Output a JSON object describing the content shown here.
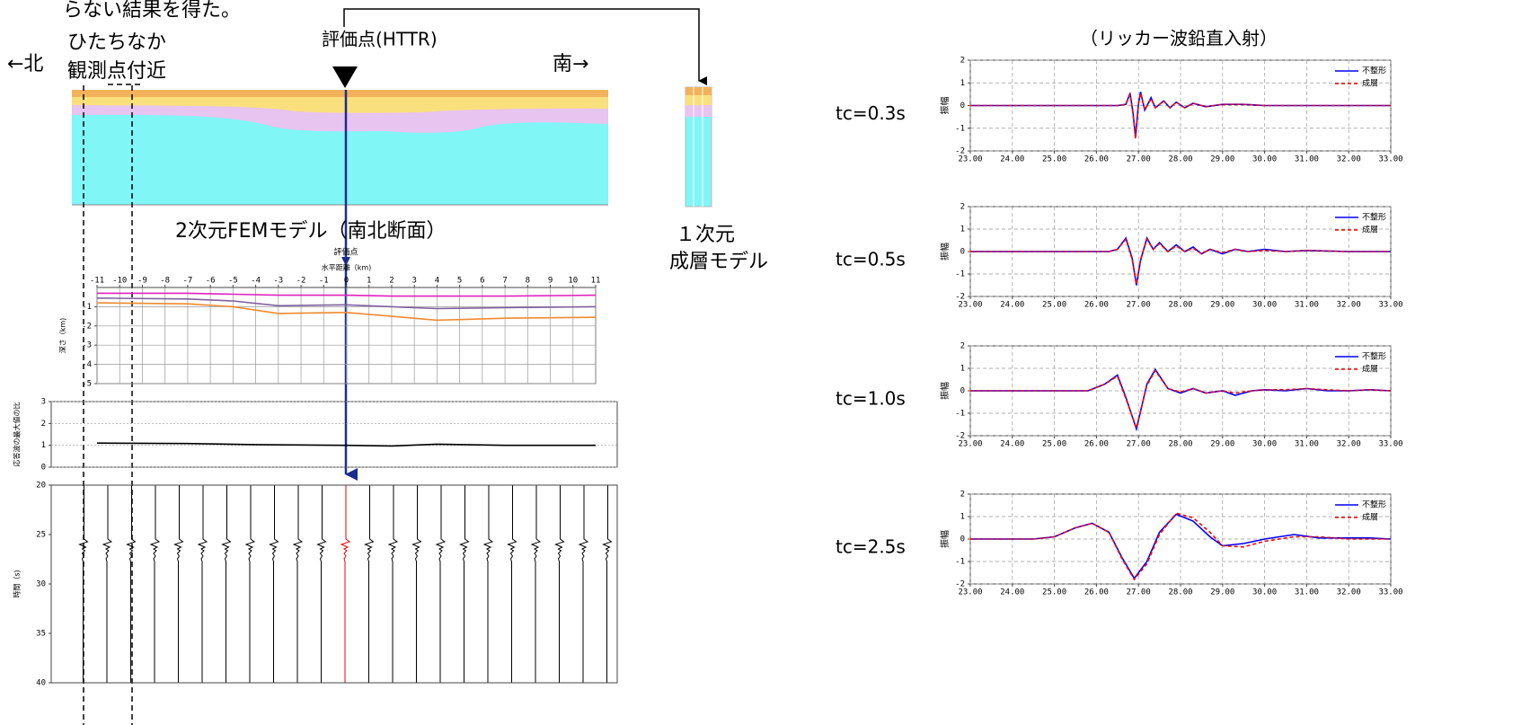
{
  "texts": {
    "note": "らない結果を得た。",
    "north": "←北",
    "site_1": "ひたちなか",
    "site_2": "観測点付近",
    "eval_point": "評価点(HTTR)",
    "south": "南→",
    "fem_caption": "2次元FEMモデル（南北断面）",
    "eval_small": "評価点",
    "one_d_1": "１次元",
    "one_d_2": "成層モデル",
    "ricker_title": "（リッカー波鉛直入射）"
  },
  "chart_data": [
    {
      "type": "line",
      "xlabel": "水平距離（km)",
      "ylabel": "深さ（km)",
      "xlim": [
        -11,
        11
      ],
      "ylim": [
        -5,
        0
      ],
      "grid": true,
      "grid_style": "solid",
      "xticks": [
        -11,
        -10,
        -9,
        -8,
        -7,
        -6,
        -5,
        -4,
        -3,
        -2,
        -1,
        0,
        1,
        2,
        3,
        4,
        5,
        6,
        7,
        8,
        9,
        10,
        11
      ],
      "yticks": [
        -1,
        -2,
        -3,
        -4,
        -5
      ],
      "x": [
        -11,
        -7,
        -5,
        -3,
        0,
        2,
        4,
        7,
        11
      ],
      "series": [
        {
          "color": "#e020c0",
          "values": [
            -0.3,
            -0.3,
            -0.35,
            -0.4,
            -0.4,
            -0.45,
            -0.45,
            -0.45,
            -0.4
          ]
        },
        {
          "color": "#8060a0",
          "values": [
            -0.55,
            -0.6,
            -0.7,
            -0.95,
            -0.9,
            -1.0,
            -1.1,
            -1.05,
            -1.0
          ]
        },
        {
          "color": "#f08a30",
          "values": [
            -0.8,
            -0.85,
            -1.0,
            -1.35,
            -1.3,
            -1.5,
            -1.7,
            -1.6,
            -1.55
          ]
        }
      ]
    },
    {
      "type": "line",
      "ylabel": "応答波の最大値の比",
      "ylim": [
        0,
        3
      ],
      "yticks": [
        0,
        1,
        2,
        3
      ],
      "grid": true,
      "grid_style": "dotted",
      "x": [
        -11,
        -7,
        -4,
        0,
        2,
        4,
        7,
        11
      ],
      "series": [
        {
          "color": "#000000",
          "values": [
            1.1,
            1.08,
            1.03,
            1.0,
            0.97,
            1.05,
            1.0,
            1.0
          ]
        }
      ]
    },
    {
      "type": "line",
      "ylabel": "時間（s)",
      "ylim": [
        40,
        20
      ],
      "yticks": [
        20,
        25,
        30,
        35,
        40
      ],
      "grid": false
    },
    {
      "type": "line",
      "label": "tc=0.3s",
      "ylabel": "振幅",
      "xlim": [
        23,
        33
      ],
      "ylim": [
        -2,
        2
      ],
      "grid": true,
      "grid_style": "dashed",
      "xticks": [
        {
          "value": 23,
          "label": "23.00"
        },
        {
          "value": 24,
          "label": "24.00"
        },
        {
          "value": 25,
          "label": "25.00"
        },
        {
          "value": 26,
          "label": "26.00"
        },
        {
          "value": 27,
          "label": "27.00"
        },
        {
          "value": 28,
          "label": "28.00"
        },
        {
          "value": 29,
          "label": "29.00"
        },
        {
          "value": 30,
          "label": "30.00"
        },
        {
          "value": 31,
          "label": "31.00"
        },
        {
          "value": 32,
          "label": "32.00"
        },
        {
          "value": 33,
          "label": "33.00"
        }
      ],
      "yticks": [
        -2,
        -1,
        0,
        1,
        2
      ],
      "x": [
        23,
        26.5,
        26.7,
        26.8,
        26.87,
        26.93,
        27.0,
        27.05,
        27.15,
        27.3,
        27.4,
        27.6,
        27.75,
        27.9,
        28.1,
        28.3,
        28.6,
        29.0,
        29.5,
        30,
        31,
        32,
        33
      ],
      "series": [
        {
          "name": "不整形",
          "color": "#0000ff",
          "line_style": "solid",
          "values": [
            0,
            0,
            0.05,
            0.55,
            -0.3,
            -1.4,
            0.1,
            0.6,
            -0.2,
            0.35,
            -0.1,
            0.2,
            -0.1,
            0.15,
            -0.1,
            0.1,
            -0.05,
            0.05,
            0.05,
            0,
            0,
            0,
            0
          ]
        },
        {
          "name": "成層",
          "color": "#ff0000",
          "line_style": "dashed",
          "values": [
            0,
            0,
            0.05,
            0.5,
            -0.35,
            -1.45,
            0.05,
            0.55,
            -0.2,
            0.3,
            -0.1,
            0.2,
            -0.1,
            0.15,
            -0.1,
            0.1,
            -0.05,
            0.05,
            0.05,
            0,
            0,
            0,
            0
          ]
        }
      ]
    },
    {
      "type": "line",
      "label": "tc=0.5s",
      "ylabel": "振幅",
      "xlim": [
        23,
        33
      ],
      "ylim": [
        -2,
        2
      ],
      "grid": true,
      "grid_style": "dashed",
      "xticks": [
        {
          "value": 23,
          "label": "23.00"
        },
        {
          "value": 24,
          "label": "24.00"
        },
        {
          "value": 25,
          "label": "25.00"
        },
        {
          "value": 26,
          "label": "26.00"
        },
        {
          "value": 27,
          "label": "27.00"
        },
        {
          "value": 28,
          "label": "28.00"
        },
        {
          "value": 29,
          "label": "29.00"
        },
        {
          "value": 30,
          "label": "30.00"
        },
        {
          "value": 31,
          "label": "31.00"
        },
        {
          "value": 32,
          "label": "32.00"
        },
        {
          "value": 33,
          "label": "33.00"
        }
      ],
      "yticks": [
        -2,
        -1,
        0,
        1,
        2
      ],
      "x": [
        23,
        26.3,
        26.5,
        26.7,
        26.85,
        26.95,
        27.05,
        27.2,
        27.35,
        27.5,
        27.7,
        27.9,
        28.1,
        28.3,
        28.5,
        28.7,
        29,
        29.3,
        29.6,
        30,
        30.5,
        31,
        32,
        33
      ],
      "series": [
        {
          "name": "不整形",
          "color": "#0000ff",
          "line_style": "solid",
          "values": [
            0,
            0,
            0.1,
            0.6,
            -0.3,
            -1.5,
            -0.4,
            0.6,
            0.1,
            0.4,
            0,
            0.3,
            0,
            0.2,
            -0.1,
            0.1,
            -0.1,
            0.1,
            0,
            0.1,
            0,
            0.05,
            0,
            0
          ]
        },
        {
          "name": "成層",
          "color": "#ff0000",
          "line_style": "dashed",
          "values": [
            0,
            0,
            0.1,
            0.55,
            -0.35,
            -1.45,
            -0.35,
            0.55,
            0.1,
            0.35,
            0,
            0.25,
            0,
            0.15,
            -0.1,
            0.1,
            -0.05,
            0.1,
            0,
            0.05,
            0,
            0.05,
            0,
            0
          ]
        }
      ]
    },
    {
      "type": "line",
      "label": "tc=1.0s",
      "ylabel": "振幅",
      "xlim": [
        23,
        33
      ],
      "ylim": [
        -2,
        2
      ],
      "grid": true,
      "grid_style": "dashed",
      "xticks": [
        {
          "value": 23,
          "label": "23.00"
        },
        {
          "value": 24,
          "label": "24.00"
        },
        {
          "value": 25,
          "label": "25.00"
        },
        {
          "value": 26,
          "label": "26.00"
        },
        {
          "value": 27,
          "label": "27.00"
        },
        {
          "value": 28,
          "label": "28.00"
        },
        {
          "value": 29,
          "label": "29.00"
        },
        {
          "value": 30,
          "label": "30.00"
        },
        {
          "value": 31,
          "label": "31.00"
        },
        {
          "value": 32,
          "label": "32.00"
        },
        {
          "value": 33,
          "label": "33.00"
        }
      ],
      "yticks": [
        -2,
        -1,
        0,
        1,
        2
      ],
      "x": [
        23,
        25.8,
        26.2,
        26.5,
        26.7,
        26.95,
        27.2,
        27.4,
        27.7,
        28,
        28.3,
        28.6,
        29,
        29.3,
        29.7,
        30,
        30.5,
        31,
        31.5,
        32,
        32.5,
        33
      ],
      "series": [
        {
          "name": "不整形",
          "color": "#0000ff",
          "line_style": "solid",
          "values": [
            0,
            0,
            0.3,
            0.7,
            -0.3,
            -1.7,
            0.3,
            0.95,
            0.1,
            -0.1,
            0.1,
            -0.1,
            0,
            -0.2,
            0,
            0.05,
            0,
            0.1,
            0,
            0,
            0.05,
            0
          ]
        },
        {
          "name": "成層",
          "color": "#ff0000",
          "line_style": "dashed",
          "values": [
            0,
            0,
            0.3,
            0.65,
            -0.35,
            -1.65,
            0.25,
            0.9,
            0.1,
            -0.05,
            0.1,
            -0.1,
            0,
            -0.1,
            0,
            0.05,
            0.05,
            0.1,
            0.05,
            0,
            0.05,
            0
          ]
        }
      ]
    },
    {
      "type": "line",
      "label": "tc=2.5s",
      "ylabel": "振幅",
      "xlim": [
        23,
        33
      ],
      "ylim": [
        -2,
        2
      ],
      "grid": true,
      "grid_style": "dashed",
      "xticks": [
        {
          "value": 23,
          "label": "23.00"
        },
        {
          "value": 24,
          "label": "24.00"
        },
        {
          "value": 25,
          "label": "25.00"
        },
        {
          "value": 26,
          "label": "26.00"
        },
        {
          "value": 27,
          "label": "27.00"
        },
        {
          "value": 28,
          "label": "28.00"
        },
        {
          "value": 29,
          "label": "29.00"
        },
        {
          "value": 30,
          "label": "30.00"
        },
        {
          "value": 31,
          "label": "31.00"
        },
        {
          "value": 32,
          "label": "32.00"
        },
        {
          "value": 33,
          "label": "33.00"
        }
      ],
      "yticks": [
        -2,
        -1,
        0,
        1,
        2
      ],
      "x": [
        23,
        24.5,
        25,
        25.5,
        25.9,
        26.3,
        26.6,
        26.9,
        27.2,
        27.5,
        27.9,
        28.3,
        28.7,
        29,
        29.5,
        30,
        30.7,
        31.3,
        32,
        32.5,
        33
      ],
      "series": [
        {
          "name": "不整形",
          "color": "#0000ff",
          "line_style": "solid",
          "values": [
            0,
            0,
            0.1,
            0.5,
            0.7,
            0.3,
            -0.8,
            -1.75,
            -1.0,
            0.3,
            1.1,
            0.8,
            0.1,
            -0.3,
            -0.2,
            0,
            0.2,
            0.05,
            0.05,
            0.05,
            0
          ]
        },
        {
          "name": "成層",
          "color": "#ff0000",
          "line_style": "dashed",
          "values": [
            0,
            0,
            0.1,
            0.5,
            0.7,
            0.3,
            -0.85,
            -1.8,
            -1.1,
            0.2,
            1.15,
            0.95,
            0.3,
            -0.3,
            -0.35,
            -0.1,
            0.1,
            0.1,
            0,
            0,
            0
          ]
        }
      ]
    }
  ]
}
